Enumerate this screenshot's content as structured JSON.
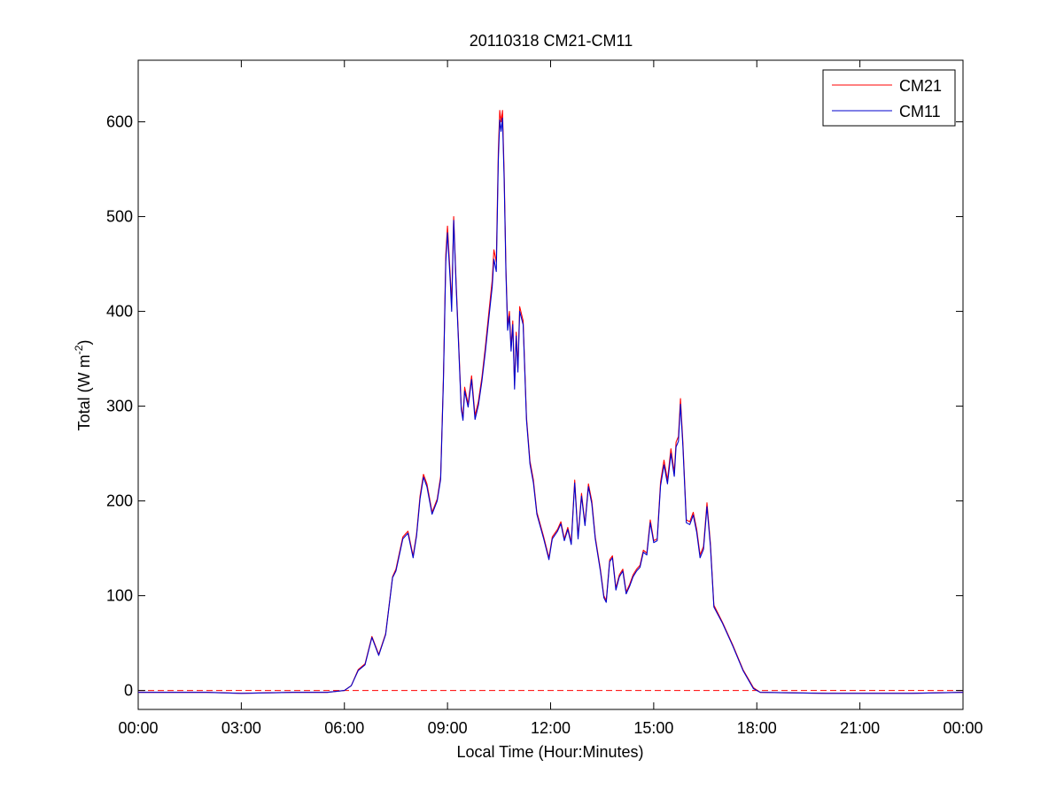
{
  "chart_data": {
    "type": "line",
    "title": "20110318 CM21-CM11",
    "xlabel": "Local Time (Hour:Minutes)",
    "ylabel": {
      "main": "Total (W m",
      "superscript": "-2",
      "close": ")"
    },
    "xlim": [
      0,
      24
    ],
    "ylim": [
      -20,
      665
    ],
    "x_ticks": [
      {
        "value": 0,
        "label": "00:00"
      },
      {
        "value": 3,
        "label": "03:00"
      },
      {
        "value": 6,
        "label": "06:00"
      },
      {
        "value": 9,
        "label": "09:00"
      },
      {
        "value": 12,
        "label": "12:00"
      },
      {
        "value": 15,
        "label": "15:00"
      },
      {
        "value": 18,
        "label": "18:00"
      },
      {
        "value": 21,
        "label": "21:00"
      },
      {
        "value": 24,
        "label": "00:00"
      }
    ],
    "y_ticks": [
      {
        "value": 0,
        "label": "0"
      },
      {
        "value": 100,
        "label": "100"
      },
      {
        "value": 200,
        "label": "200"
      },
      {
        "value": 300,
        "label": "300"
      },
      {
        "value": 400,
        "label": "400"
      },
      {
        "value": 500,
        "label": "500"
      },
      {
        "value": 600,
        "label": "600"
      }
    ],
    "grid": false,
    "legend_position": "top-right",
    "zero_line": {
      "value": 0,
      "color": "#ff0000",
      "style": "dashed"
    },
    "series": [
      {
        "name": "CM21",
        "color": "#ff0000",
        "points": [
          [
            0.0,
            -2
          ],
          [
            2.0,
            -2
          ],
          [
            3.0,
            -3
          ],
          [
            4.5,
            -2
          ],
          [
            5.5,
            -2
          ],
          [
            6.0,
            0
          ],
          [
            6.2,
            5
          ],
          [
            6.4,
            22
          ],
          [
            6.6,
            28
          ],
          [
            6.8,
            57
          ],
          [
            7.0,
            38
          ],
          [
            7.2,
            60
          ],
          [
            7.4,
            120
          ],
          [
            7.5,
            128
          ],
          [
            7.7,
            162
          ],
          [
            7.85,
            168
          ],
          [
            8.0,
            142
          ],
          [
            8.1,
            165
          ],
          [
            8.2,
            205
          ],
          [
            8.3,
            228
          ],
          [
            8.4,
            218
          ],
          [
            8.55,
            188
          ],
          [
            8.7,
            202
          ],
          [
            8.8,
            226
          ],
          [
            8.88,
            330
          ],
          [
            8.95,
            460
          ],
          [
            9.0,
            490
          ],
          [
            9.08,
            438
          ],
          [
            9.12,
            406
          ],
          [
            9.18,
            500
          ],
          [
            9.25,
            432
          ],
          [
            9.32,
            372
          ],
          [
            9.4,
            300
          ],
          [
            9.45,
            288
          ],
          [
            9.5,
            320
          ],
          [
            9.6,
            302
          ],
          [
            9.7,
            332
          ],
          [
            9.8,
            290
          ],
          [
            9.9,
            305
          ],
          [
            10.0,
            330
          ],
          [
            10.1,
            362
          ],
          [
            10.2,
            398
          ],
          [
            10.3,
            433
          ],
          [
            10.35,
            465
          ],
          [
            10.42,
            452
          ],
          [
            10.48,
            570
          ],
          [
            10.52,
            612
          ],
          [
            10.56,
            600
          ],
          [
            10.6,
            612
          ],
          [
            10.65,
            545
          ],
          [
            10.7,
            445
          ],
          [
            10.75,
            385
          ],
          [
            10.8,
            400
          ],
          [
            10.85,
            362
          ],
          [
            10.9,
            390
          ],
          [
            10.95,
            322
          ],
          [
            11.0,
            378
          ],
          [
            11.05,
            340
          ],
          [
            11.1,
            405
          ],
          [
            11.2,
            390
          ],
          [
            11.3,
            288
          ],
          [
            11.4,
            242
          ],
          [
            11.5,
            222
          ],
          [
            11.6,
            188
          ],
          [
            11.8,
            162
          ],
          [
            11.95,
            140
          ],
          [
            12.05,
            162
          ],
          [
            12.2,
            170
          ],
          [
            12.3,
            178
          ],
          [
            12.4,
            160
          ],
          [
            12.5,
            172
          ],
          [
            12.6,
            156
          ],
          [
            12.7,
            222
          ],
          [
            12.8,
            162
          ],
          [
            12.9,
            208
          ],
          [
            13.0,
            176
          ],
          [
            13.1,
            218
          ],
          [
            13.2,
            200
          ],
          [
            13.3,
            162
          ],
          [
            13.45,
            128
          ],
          [
            13.55,
            100
          ],
          [
            13.62,
            95
          ],
          [
            13.72,
            138
          ],
          [
            13.8,
            142
          ],
          [
            13.9,
            108
          ],
          [
            14.0,
            122
          ],
          [
            14.1,
            128
          ],
          [
            14.2,
            104
          ],
          [
            14.3,
            112
          ],
          [
            14.4,
            122
          ],
          [
            14.5,
            128
          ],
          [
            14.6,
            132
          ],
          [
            14.7,
            148
          ],
          [
            14.8,
            145
          ],
          [
            14.9,
            180
          ],
          [
            15.0,
            158
          ],
          [
            15.1,
            160
          ],
          [
            15.2,
            220
          ],
          [
            15.3,
            243
          ],
          [
            15.4,
            222
          ],
          [
            15.5,
            255
          ],
          [
            15.6,
            230
          ],
          [
            15.65,
            262
          ],
          [
            15.72,
            268
          ],
          [
            15.78,
            308
          ],
          [
            15.85,
            262
          ],
          [
            15.95,
            180
          ],
          [
            16.05,
            178
          ],
          [
            16.15,
            188
          ],
          [
            16.25,
            170
          ],
          [
            16.35,
            143
          ],
          [
            16.45,
            152
          ],
          [
            16.55,
            198
          ],
          [
            16.65,
            155
          ],
          [
            16.75,
            90
          ],
          [
            17.0,
            72
          ],
          [
            17.3,
            48
          ],
          [
            17.6,
            22
          ],
          [
            17.9,
            3
          ],
          [
            18.1,
            -2
          ],
          [
            20.0,
            -3
          ],
          [
            22.5,
            -3
          ],
          [
            24.0,
            -2
          ]
        ]
      },
      {
        "name": "CM11",
        "color": "#0000cc",
        "points": [
          [
            0.0,
            -2
          ],
          [
            2.0,
            -2
          ],
          [
            3.0,
            -3
          ],
          [
            4.5,
            -2
          ],
          [
            5.5,
            -2
          ],
          [
            6.0,
            0
          ],
          [
            6.2,
            5
          ],
          [
            6.4,
            21
          ],
          [
            6.6,
            27
          ],
          [
            6.8,
            56
          ],
          [
            7.0,
            37
          ],
          [
            7.2,
            59
          ],
          [
            7.4,
            119
          ],
          [
            7.5,
            126
          ],
          [
            7.7,
            160
          ],
          [
            7.85,
            166
          ],
          [
            8.0,
            140
          ],
          [
            8.1,
            163
          ],
          [
            8.2,
            202
          ],
          [
            8.3,
            225
          ],
          [
            8.4,
            215
          ],
          [
            8.55,
            186
          ],
          [
            8.7,
            200
          ],
          [
            8.8,
            223
          ],
          [
            8.88,
            326
          ],
          [
            8.95,
            452
          ],
          [
            9.0,
            483
          ],
          [
            9.08,
            432
          ],
          [
            9.12,
            400
          ],
          [
            9.18,
            496
          ],
          [
            9.25,
            428
          ],
          [
            9.32,
            368
          ],
          [
            9.4,
            297
          ],
          [
            9.45,
            285
          ],
          [
            9.5,
            316
          ],
          [
            9.6,
            299
          ],
          [
            9.7,
            328
          ],
          [
            9.8,
            286
          ],
          [
            9.9,
            301
          ],
          [
            10.0,
            326
          ],
          [
            10.1,
            357
          ],
          [
            10.2,
            392
          ],
          [
            10.3,
            426
          ],
          [
            10.35,
            455
          ],
          [
            10.42,
            442
          ],
          [
            10.48,
            560
          ],
          [
            10.52,
            602
          ],
          [
            10.56,
            590
          ],
          [
            10.6,
            604
          ],
          [
            10.65,
            538
          ],
          [
            10.7,
            440
          ],
          [
            10.75,
            380
          ],
          [
            10.8,
            395
          ],
          [
            10.85,
            358
          ],
          [
            10.9,
            386
          ],
          [
            10.95,
            318
          ],
          [
            11.0,
            374
          ],
          [
            11.05,
            336
          ],
          [
            11.1,
            400
          ],
          [
            11.2,
            386
          ],
          [
            11.3,
            285
          ],
          [
            11.4,
            239
          ],
          [
            11.5,
            219
          ],
          [
            11.6,
            186
          ],
          [
            11.8,
            160
          ],
          [
            11.95,
            138
          ],
          [
            12.05,
            160
          ],
          [
            12.2,
            168
          ],
          [
            12.3,
            176
          ],
          [
            12.4,
            158
          ],
          [
            12.5,
            170
          ],
          [
            12.6,
            154
          ],
          [
            12.7,
            219
          ],
          [
            12.8,
            160
          ],
          [
            12.9,
            205
          ],
          [
            13.0,
            174
          ],
          [
            13.1,
            215
          ],
          [
            13.2,
            197
          ],
          [
            13.3,
            160
          ],
          [
            13.45,
            126
          ],
          [
            13.55,
            98
          ],
          [
            13.62,
            93
          ],
          [
            13.72,
            136
          ],
          [
            13.8,
            140
          ],
          [
            13.9,
            106
          ],
          [
            14.0,
            120
          ],
          [
            14.1,
            126
          ],
          [
            14.2,
            102
          ],
          [
            14.3,
            110
          ],
          [
            14.4,
            120
          ],
          [
            14.5,
            126
          ],
          [
            14.6,
            130
          ],
          [
            14.7,
            146
          ],
          [
            14.8,
            143
          ],
          [
            14.9,
            177
          ],
          [
            15.0,
            156
          ],
          [
            15.1,
            158
          ],
          [
            15.2,
            216
          ],
          [
            15.3,
            238
          ],
          [
            15.4,
            218
          ],
          [
            15.5,
            250
          ],
          [
            15.6,
            226
          ],
          [
            15.65,
            257
          ],
          [
            15.72,
            263
          ],
          [
            15.78,
            302
          ],
          [
            15.85,
            258
          ],
          [
            15.95,
            177
          ],
          [
            16.05,
            175
          ],
          [
            16.15,
            185
          ],
          [
            16.25,
            167
          ],
          [
            16.35,
            140
          ],
          [
            16.45,
            149
          ],
          [
            16.55,
            194
          ],
          [
            16.65,
            152
          ],
          [
            16.75,
            88
          ],
          [
            17.0,
            71
          ],
          [
            17.3,
            47
          ],
          [
            17.6,
            21
          ],
          [
            17.9,
            2
          ],
          [
            18.1,
            -2
          ],
          [
            20.0,
            -3
          ],
          [
            22.5,
            -3
          ],
          [
            24.0,
            -2
          ]
        ]
      }
    ]
  }
}
